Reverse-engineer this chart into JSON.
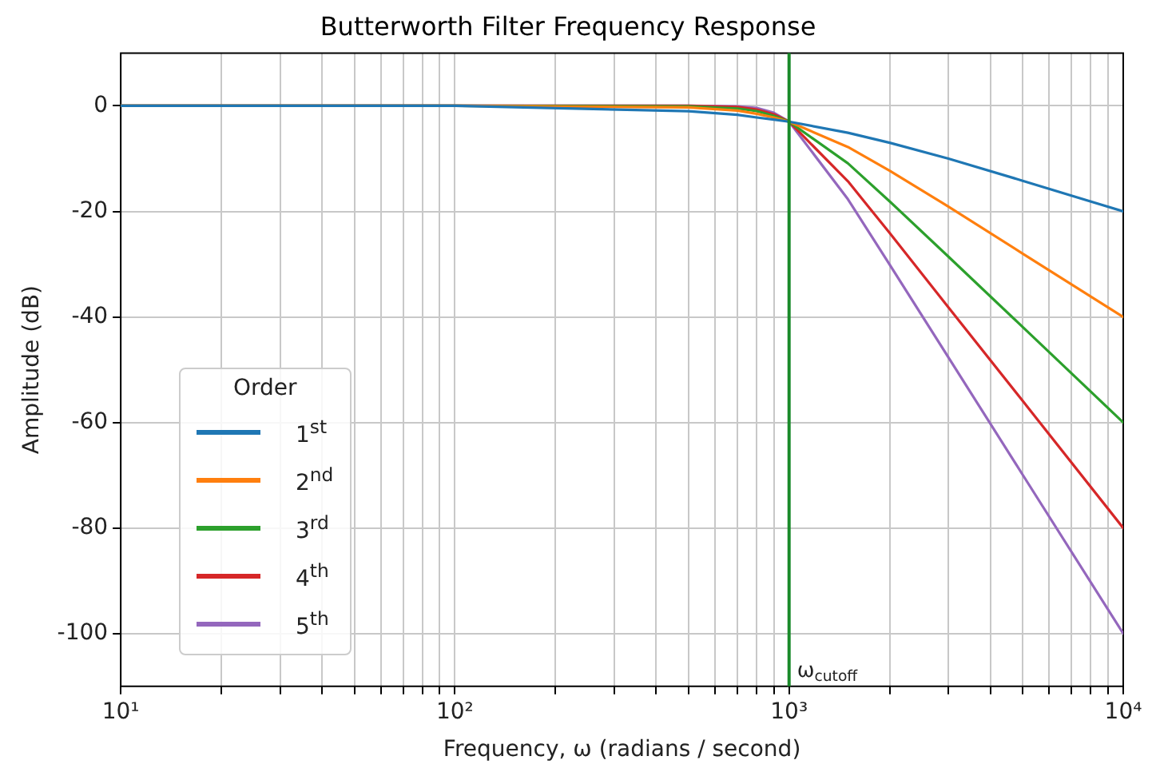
{
  "chart_data": {
    "type": "line",
    "title": "Butterworth Filter Frequency Response",
    "xlabel": "Frequency, ω (radians / second)",
    "ylabel": "Amplitude (dB)",
    "legend_title": "Order",
    "log": "x",
    "x": [
      10,
      100,
      500,
      700,
      800,
      900,
      1000,
      1500,
      2000,
      3000,
      5000,
      10000
    ],
    "series": [
      {
        "name": "1$^{st}$",
        "color": "#1f77b4",
        "values": [
          0,
          0,
          -1.0,
          -1.7,
          -2.2,
          -2.6,
          -3.0,
          -5.1,
          -7.0,
          -10.0,
          -14.2,
          -20.0
        ]
      },
      {
        "name": "2$^{nd}$",
        "color": "#ff7f0e",
        "values": [
          0,
          0,
          -0.3,
          -0.9,
          -1.5,
          -2.2,
          -3.0,
          -7.8,
          -12.3,
          -19.1,
          -28.0,
          -40.0
        ]
      },
      {
        "name": "3$^{rd}$",
        "color": "#2ca02c",
        "values": [
          0,
          0,
          -0.1,
          -0.5,
          -1.0,
          -1.9,
          -3.0,
          -10.9,
          -18.1,
          -28.6,
          -41.9,
          -60.0
        ]
      },
      {
        "name": "4$^{th}$",
        "color": "#d62728",
        "values": [
          0,
          0,
          0,
          -0.2,
          -0.7,
          -1.6,
          -3.0,
          -14.3,
          -24.1,
          -38.2,
          -55.9,
          -80.0
        ]
      },
      {
        "name": "5$^{th}$",
        "color": "#9467bd",
        "values": [
          0,
          0,
          0,
          -0.1,
          -0.4,
          -1.3,
          -3.0,
          -17.7,
          -30.1,
          -47.7,
          -69.9,
          -100.0
        ]
      }
    ],
    "xlim": [
      10,
      10000
    ],
    "xticks": [
      {
        "value": 10,
        "label": "10¹"
      },
      {
        "value": 20,
        "label": null
      },
      {
        "value": 30,
        "label": null
      },
      {
        "value": 40,
        "label": null
      },
      {
        "value": 50,
        "label": null
      },
      {
        "value": 60,
        "label": null
      },
      {
        "value": 70,
        "label": null
      },
      {
        "value": 80,
        "label": null
      },
      {
        "value": 90,
        "label": null
      },
      {
        "value": 100,
        "label": "10²"
      },
      {
        "value": 200,
        "label": null
      },
      {
        "value": 300,
        "label": null
      },
      {
        "value": 400,
        "label": null
      },
      {
        "value": 500,
        "label": null
      },
      {
        "value": 600,
        "label": null
      },
      {
        "value": 700,
        "label": null
      },
      {
        "value": 800,
        "label": null
      },
      {
        "value": 900,
        "label": null
      },
      {
        "value": 1000,
        "label": "10³"
      },
      {
        "value": 2000,
        "label": null
      },
      {
        "value": 3000,
        "label": null
      },
      {
        "value": 4000,
        "label": null
      },
      {
        "value": 5000,
        "label": null
      },
      {
        "value": 6000,
        "label": null
      },
      {
        "value": 7000,
        "label": null
      },
      {
        "value": 8000,
        "label": null
      },
      {
        "value": 9000,
        "label": null
      },
      {
        "value": 10000,
        "label": "10⁴"
      }
    ],
    "ylim": [
      -110,
      10
    ],
    "yticks": [
      -100,
      -80,
      -60,
      -40,
      -20,
      0
    ],
    "grid": true,
    "legend": "bottom left",
    "marker": "none",
    "line_style": "solid",
    "ref_lines": [
      {
        "axis": "x",
        "value": 1000,
        "label": "ω$_{cutoff}$",
        "color": "#1a8a2a"
      }
    ]
  }
}
